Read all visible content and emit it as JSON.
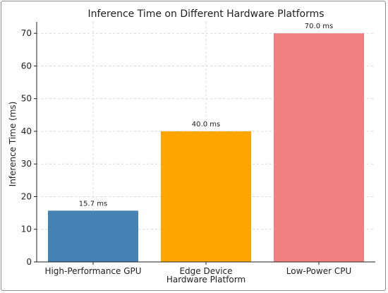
{
  "chart_data": {
    "type": "bar",
    "title": "Inference Time on Different Hardware Platforms",
    "xlabel": "Hardware Platform",
    "ylabel": "Inference Time (ms)",
    "categories": [
      "High-Performance GPU",
      "Edge Device",
      "Low-Power CPU"
    ],
    "values": [
      15.7,
      40.0,
      70.0
    ],
    "value_labels": [
      "15.7 ms",
      "40.0 ms",
      "70.0 ms"
    ],
    "colors": [
      "#4682b4",
      "#ffa500",
      "#f08080"
    ],
    "ylim": [
      0,
      73.5
    ],
    "yticks": [
      0,
      10,
      20,
      30,
      40,
      50,
      60,
      70
    ],
    "grid": true
  }
}
